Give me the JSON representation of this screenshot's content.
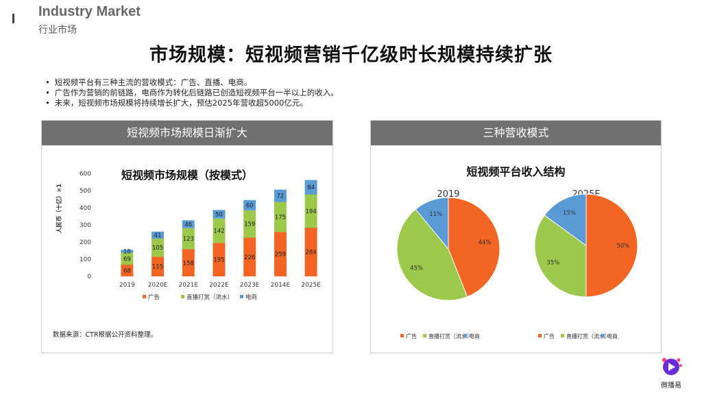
{
  "header": {
    "en": "Industry Market",
    "cn": "行业市场"
  },
  "title": "市场规模：短视频营销千亿级时长规模持续扩张",
  "bullets": [
    "短视频平台有三种主流的营收模式：广告、直播、电商。",
    "广告作为营销的前链路，电商作为转化后链路已创造短视频平台一半以上的收入。",
    "未来，短视频市场规模将持续增长扩大，预估2025年营收超5000亿元。"
  ],
  "left_panel": {
    "header": "短视频市场规模日渐扩大",
    "source": "数据来源：CTR根据公开资料整理。"
  },
  "right_panel": {
    "header": "三种营收模式"
  },
  "logo_text": "微播易",
  "colors": {
    "ads": "#f26522",
    "live": "#9cc84b",
    "ecom": "#5b9bd5"
  },
  "chart_data": [
    {
      "type": "bar",
      "stacked": true,
      "title": "短视频市场规模（按模式）",
      "ylabel": "人民币（十亿）×1",
      "ylim": [
        0,
        600
      ],
      "yticks": [
        0,
        100,
        200,
        300,
        400,
        500,
        600
      ],
      "categories": [
        "2019",
        "2020E",
        "2021E",
        "2022E",
        "2023E",
        "2014E",
        "2025E"
      ],
      "series": [
        {
          "name": "广告",
          "values": [
            68,
            115,
            158,
            195,
            226,
            259,
            284
          ]
        },
        {
          "name": "直播打赏（流水）",
          "values": [
            69,
            105,
            123,
            142,
            159,
            175,
            194
          ]
        },
        {
          "name": "电商",
          "values": [
            18,
            41,
            46,
            50,
            60,
            72,
            84
          ]
        }
      ],
      "legend": "bottom",
      "grid": false
    },
    {
      "type": "pie",
      "title": "短视频平台收入结构",
      "pies": [
        {
          "label": "2019",
          "values": [
            44,
            45,
            11
          ],
          "labels": [
            "44%",
            "45%",
            "11%"
          ]
        },
        {
          "label": "2025E",
          "values": [
            50,
            35,
            15
          ],
          "labels": [
            "50%",
            "35%",
            "15%"
          ]
        }
      ],
      "categories": [
        "广告",
        "直播打赏（流水）",
        "电商"
      ],
      "legend": "bottom"
    }
  ]
}
